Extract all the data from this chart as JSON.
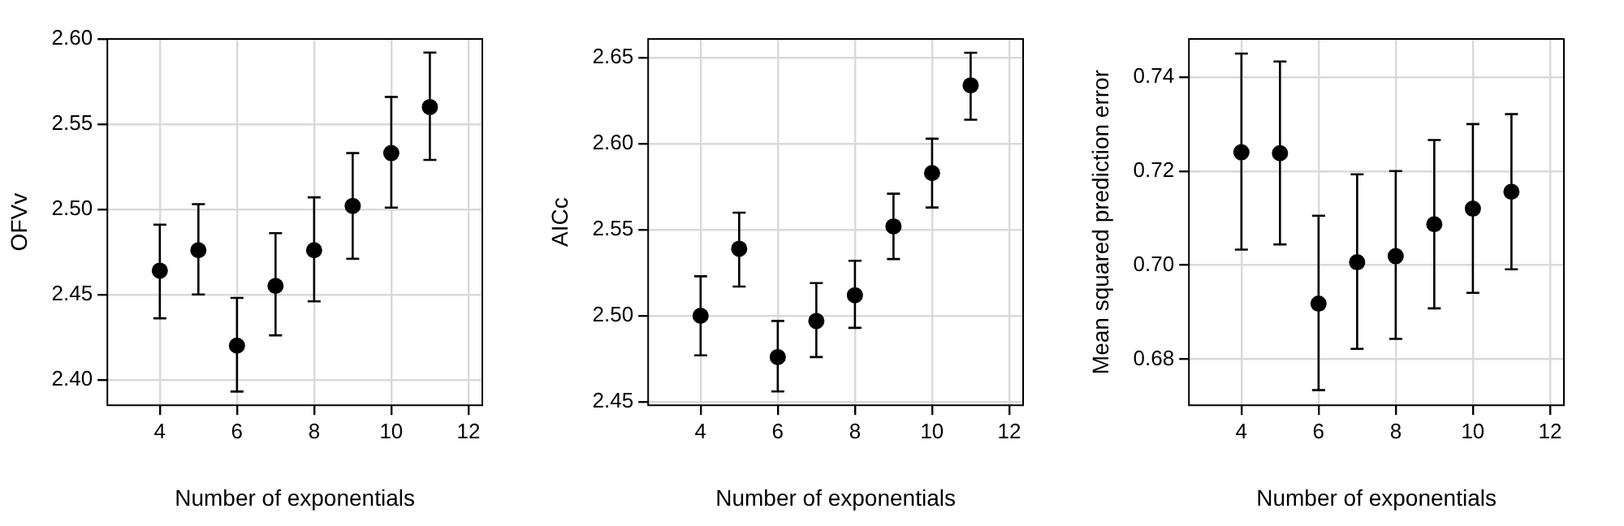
{
  "chart_data": [
    {
      "type": "scatter",
      "xlabel": "Number of exponentials",
      "ylabel": "OFVv",
      "x": [
        4,
        5,
        6,
        7,
        8,
        9,
        10,
        11
      ],
      "series": [
        {
          "color": "#000000",
          "values": [
            2.464,
            2.476,
            2.42,
            2.455,
            2.476,
            2.502,
            2.533,
            2.56
          ],
          "errors": [
            [
              2.436,
              2.491
            ],
            [
              2.45,
              2.503
            ],
            [
              2.393,
              2.448
            ],
            [
              2.426,
              2.486
            ],
            [
              2.446,
              2.507
            ],
            [
              2.471,
              2.533
            ],
            [
              2.501,
              2.566
            ],
            [
              2.529,
              2.592
            ]
          ]
        }
      ],
      "xlim": [
        2.64,
        12.36
      ],
      "xticks": [
        4,
        6,
        8,
        10,
        12
      ],
      "ylim": [
        2.385,
        2.6
      ],
      "yticks": [
        {
          "value": 2.4,
          "label": "2.40"
        },
        2.45,
        {
          "value": 2.5,
          "label": "2.50"
        },
        2.55,
        {
          "value": 2.6,
          "label": "2.60"
        }
      ],
      "grid": true,
      "marker": "circle",
      "legend": false
    },
    {
      "type": "scatter",
      "xlabel": "Number of exponentials",
      "ylabel": "AICc",
      "x": [
        4,
        5,
        6,
        7,
        8,
        9,
        10,
        11
      ],
      "series": [
        {
          "color": "#000000",
          "values": [
            2.5,
            2.539,
            2.476,
            2.497,
            2.512,
            2.552,
            2.583,
            2.634
          ],
          "errors": [
            [
              2.477,
              2.523
            ],
            [
              2.517,
              2.56
            ],
            [
              2.456,
              2.497
            ],
            [
              2.476,
              2.519
            ],
            [
              2.493,
              2.532
            ],
            [
              2.533,
              2.571
            ],
            [
              2.563,
              2.603
            ],
            [
              2.614,
              2.653
            ]
          ]
        }
      ],
      "xlim": [
        2.64,
        12.36
      ],
      "xticks": [
        4,
        6,
        8,
        10,
        12
      ],
      "ylim": [
        2.448,
        2.661
      ],
      "yticks": [
        2.45,
        {
          "value": 2.5,
          "label": "2.50"
        },
        2.55,
        {
          "value": 2.6,
          "label": "2.60"
        },
        2.65
      ],
      "grid": true,
      "marker": "circle",
      "legend": false
    },
    {
      "type": "scatter",
      "xlabel": "Number of exponentials",
      "ylabel": "Mean squared prediction error",
      "x": [
        4,
        5,
        6,
        7,
        8,
        9,
        10,
        11
      ],
      "series": [
        {
          "color": "#000000",
          "values": [
            0.724,
            0.7238,
            0.6918,
            0.7006,
            0.7019,
            0.7087,
            0.712,
            0.7156
          ],
          "errors": [
            [
              0.7033,
              0.745
            ],
            [
              0.7044,
              0.7433
            ],
            [
              0.6734,
              0.7105
            ],
            [
              0.6822,
              0.7193
            ],
            [
              0.6843,
              0.72
            ],
            [
              0.6908,
              0.7266
            ],
            [
              0.6941,
              0.73
            ],
            [
              0.6991,
              0.7321
            ]
          ]
        }
      ],
      "xlim": [
        2.64,
        12.36
      ],
      "xticks": [
        4,
        6,
        8,
        10,
        12
      ],
      "ylim": [
        0.6702,
        0.7481
      ],
      "yticks": [
        0.68,
        {
          "value": 0.7,
          "label": "0.70"
        },
        0.72,
        0.74
      ],
      "grid": true,
      "marker": "circle",
      "legend": false
    }
  ]
}
